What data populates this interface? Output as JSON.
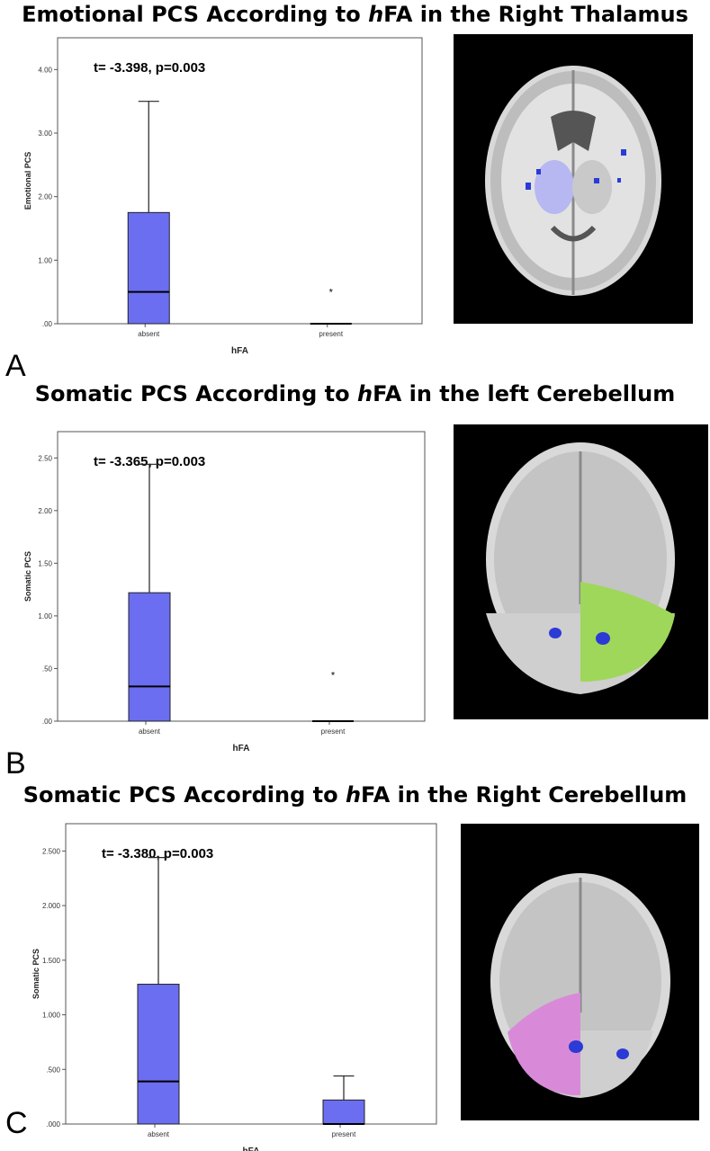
{
  "colors": {
    "box": "#6b6ef0",
    "box_stroke": "#222222",
    "thalamus": "#b7b7f2",
    "cerebellum_left": "#9fd75a",
    "cerebellum_right": "#d88ad8",
    "cluster": "#2c3ad6"
  },
  "panels": [
    {
      "letter": "A",
      "title_pre": "Emotional PCS According to ",
      "title_italic": "h",
      "title_post": "FA in the Right Thalamus",
      "stat": "t= -3.398, p=0.003",
      "image": "axial-thalamus",
      "chart_data": {
        "type": "box",
        "xlabel": "hFA",
        "ylabel": "Emotional PCS",
        "ylim": [
          0,
          4.5
        ],
        "yticks": [
          0,
          1,
          2,
          3,
          4
        ],
        "ytick_labels": [
          ".00",
          "1.00",
          "2.00",
          "3.00",
          "4.00"
        ],
        "categories": [
          "absent",
          "present"
        ],
        "boxes": [
          {
            "min": 0,
            "q1": 0,
            "median": 0.5,
            "q3": 1.75,
            "max": 3.5,
            "outliers": []
          },
          {
            "min": 0,
            "q1": 0,
            "median": 0,
            "q3": 0,
            "max": 0,
            "outliers": [
              0.5
            ]
          }
        ]
      }
    },
    {
      "letter": "B",
      "title_pre": "Somatic PCS According to ",
      "title_italic": "h",
      "title_post": "FA in the left Cerebellum",
      "stat": "t= -3.365, p=0.003",
      "image": "coronal-left-cerebellum",
      "chart_data": {
        "type": "box",
        "xlabel": "hFA",
        "ylabel": "Somatic PCS",
        "ylim": [
          0,
          2.75
        ],
        "yticks": [
          0,
          0.5,
          1,
          1.5,
          2,
          2.5
        ],
        "ytick_labels": [
          ".00",
          ".50",
          "1.00",
          "1.50",
          "2.00",
          "2.50"
        ],
        "categories": [
          "absent",
          "present"
        ],
        "boxes": [
          {
            "min": 0,
            "q1": 0,
            "median": 0.33,
            "q3": 1.22,
            "max": 2.44,
            "outliers": []
          },
          {
            "min": 0,
            "q1": 0,
            "median": 0,
            "q3": 0,
            "max": 0,
            "outliers": [
              0.44
            ]
          }
        ]
      }
    },
    {
      "letter": "C",
      "title_pre": "Somatic PCS According to ",
      "title_italic": "h",
      "title_post": "FA in the Right Cerebellum",
      "stat": "t= -3.380, p=0.003",
      "image": "coronal-right-cerebellum",
      "chart_data": {
        "type": "box",
        "xlabel": "hFA",
        "ylabel": "Somatic PCS",
        "ylim": [
          0,
          2.75
        ],
        "yticks": [
          0,
          0.5,
          1,
          1.5,
          2,
          2.5
        ],
        "ytick_labels": [
          ".000",
          ".500",
          "1.000",
          "1.500",
          "2.000",
          "2.500"
        ],
        "categories": [
          "absent",
          "present"
        ],
        "boxes": [
          {
            "min": 0,
            "q1": 0,
            "median": 0.39,
            "q3": 1.28,
            "max": 2.44,
            "outliers": []
          },
          {
            "min": 0,
            "q1": 0,
            "median": 0,
            "q3": 0.22,
            "max": 0.44,
            "outliers": []
          }
        ]
      }
    }
  ]
}
